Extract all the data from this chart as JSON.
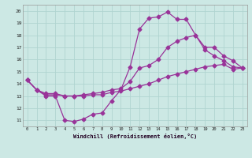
{
  "xlabel": "Windchill (Refroidissement éolien,°C)",
  "xlim": [
    -0.5,
    23.5
  ],
  "ylim": [
    10.5,
    20.5
  ],
  "xticks": [
    0,
    1,
    2,
    3,
    4,
    5,
    6,
    7,
    8,
    9,
    10,
    11,
    12,
    13,
    14,
    15,
    16,
    17,
    18,
    19,
    20,
    21,
    22,
    23
  ],
  "yticks": [
    11,
    12,
    13,
    14,
    15,
    16,
    17,
    18,
    19,
    20
  ],
  "bg_color": "#cce8e4",
  "grid_color": "#b0d4d0",
  "line_color": "#993399",
  "line1_x": [
    0,
    1,
    2,
    3,
    4,
    5,
    6,
    7,
    8,
    9,
    10,
    11,
    12,
    13,
    14,
    15,
    16,
    17,
    18,
    19,
    20,
    21,
    22,
    23
  ],
  "line1_y": [
    14.3,
    13.5,
    13.0,
    13.0,
    11.0,
    10.9,
    11.1,
    11.5,
    11.6,
    12.6,
    13.5,
    15.4,
    18.5,
    19.4,
    19.5,
    19.9,
    19.3,
    19.3,
    18.0,
    16.8,
    16.3,
    15.9,
    15.4,
    15.3
  ],
  "line2_x": [
    0,
    1,
    2,
    3,
    4,
    5,
    6,
    7,
    8,
    9,
    10,
    11,
    12,
    13,
    14,
    15,
    16,
    17,
    18,
    19,
    20,
    21,
    22,
    23
  ],
  "line2_y": [
    14.3,
    13.5,
    13.2,
    13.2,
    13.0,
    13.0,
    13.1,
    13.2,
    13.3,
    13.5,
    13.6,
    14.2,
    15.3,
    15.5,
    16.0,
    17.0,
    17.5,
    17.8,
    18.0,
    17.0,
    17.0,
    16.3,
    15.9,
    15.3
  ],
  "line3_x": [
    0,
    1,
    2,
    3,
    4,
    5,
    6,
    7,
    8,
    9,
    10,
    11,
    12,
    13,
    14,
    15,
    16,
    17,
    18,
    19,
    20,
    21,
    22,
    23
  ],
  "line3_y": [
    14.3,
    13.5,
    13.1,
    13.1,
    13.0,
    13.0,
    13.0,
    13.1,
    13.1,
    13.3,
    13.4,
    13.6,
    13.8,
    14.0,
    14.3,
    14.6,
    14.8,
    15.0,
    15.2,
    15.4,
    15.5,
    15.6,
    15.2,
    15.3
  ],
  "marker": "D",
  "markersize": 2.5,
  "linewidth": 0.9
}
